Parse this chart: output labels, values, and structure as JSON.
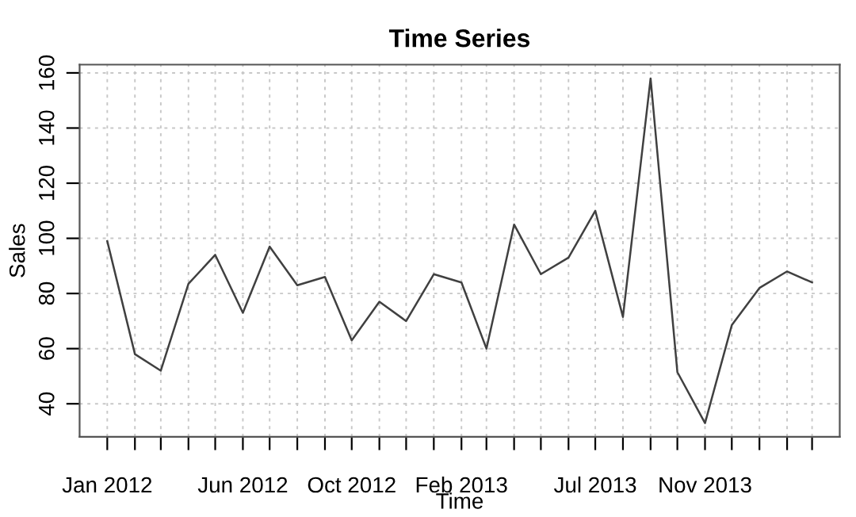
{
  "chart_data": {
    "type": "line",
    "title": "Time Series",
    "xlabel": "Time",
    "ylabel": "Sales",
    "x": [
      "2012-01",
      "2012-02",
      "2012-03",
      "2012-04",
      "2012-05",
      "2012-06",
      "2012-07",
      "2012-08",
      "2012-09",
      "2012-10",
      "2012-11",
      "2012-12",
      "2013-01",
      "2013-02",
      "2013-03",
      "2013-04",
      "2013-05",
      "2013-06",
      "2013-07",
      "2013-08",
      "2013-09",
      "2013-10",
      "2013-11",
      "2013-12",
      "2014-01",
      "2014-02",
      "2014-03"
    ],
    "series": [
      {
        "color": "#404040",
        "values": [
          99,
          58,
          52,
          83.5,
          94,
          73,
          97,
          83,
          86,
          63,
          77,
          70,
          87,
          84,
          60,
          105,
          87,
          93,
          110,
          71.5,
          158,
          51.5,
          33,
          68.5,
          82,
          88,
          84
        ]
      }
    ],
    "xlim": [
      "2011-12",
      "2014-04"
    ],
    "xticks": [
      {
        "value": "2012-01",
        "label": "Jan 2012"
      },
      {
        "value": "2012-02",
        "label": null
      },
      {
        "value": "2012-03",
        "label": null
      },
      {
        "value": "2012-04",
        "label": null
      },
      {
        "value": "2012-05",
        "label": null
      },
      {
        "value": "2012-06",
        "label": "Jun 2012"
      },
      {
        "value": "2012-07",
        "label": null
      },
      {
        "value": "2012-08",
        "label": null
      },
      {
        "value": "2012-09",
        "label": null
      },
      {
        "value": "2012-10",
        "label": "Oct 2012"
      },
      {
        "value": "2012-11",
        "label": null
      },
      {
        "value": "2012-12",
        "label": null
      },
      {
        "value": "2013-01",
        "label": null
      },
      {
        "value": "2013-02",
        "label": "Feb 2013"
      },
      {
        "value": "2013-03",
        "label": null
      },
      {
        "value": "2013-04",
        "label": null
      },
      {
        "value": "2013-05",
        "label": null
      },
      {
        "value": "2013-06",
        "label": null
      },
      {
        "value": "2013-07",
        "label": "Jul 2013"
      },
      {
        "value": "2013-08",
        "label": null
      },
      {
        "value": "2013-09",
        "label": null
      },
      {
        "value": "2013-10",
        "label": null
      },
      {
        "value": "2013-11",
        "label": "Nov 2013"
      },
      {
        "value": "2013-12",
        "label": null
      },
      {
        "value": "2014-01",
        "label": null
      },
      {
        "value": "2014-02",
        "label": null
      },
      {
        "value": "2014-03",
        "label": null
      }
    ],
    "ylim": [
      28,
      163
    ],
    "yticks": [
      40,
      60,
      80,
      100,
      120,
      140,
      160
    ],
    "grid": true,
    "line_style": "solid",
    "marker": "none"
  }
}
